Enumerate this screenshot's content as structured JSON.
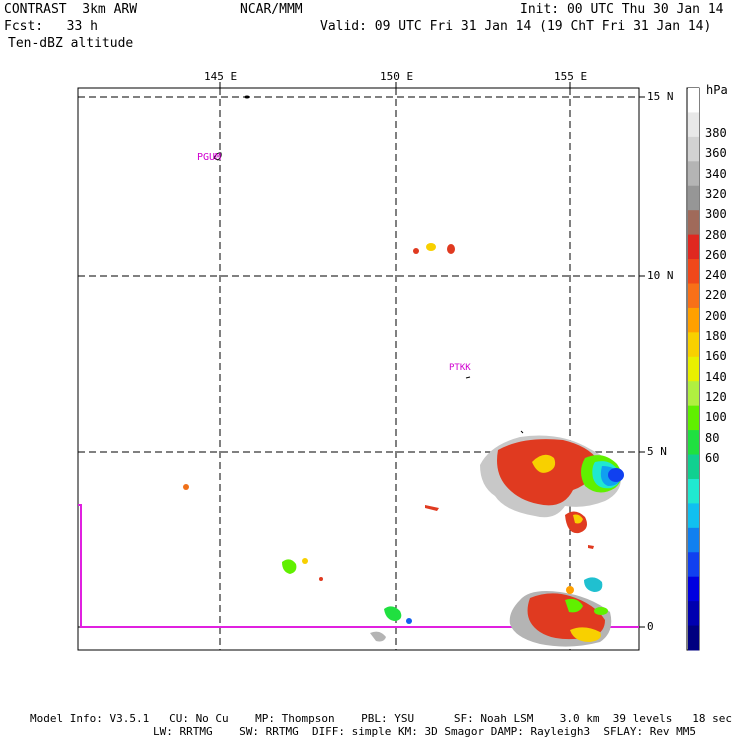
{
  "header": {
    "model": "CONTRAST  3km ARW",
    "center": "NCAR/MMM",
    "init": "Init: 00 UTC Thu 30 Jan 14",
    "fcst": "Fcst:   33 h",
    "valid": "Valid: 09 UTC Fri 31 Jan 14 (19 ChT Fri 31 Jan 14)",
    "field": "Ten-dBZ altitude"
  },
  "map": {
    "lon_labels": [
      "145 E",
      "150 E",
      "155 E"
    ],
    "lat_labels": [
      "15 N",
      "10 N",
      "5 N",
      "0"
    ],
    "station_labels": [
      "PGUM",
      "PTKK"
    ]
  },
  "colorbar": {
    "unit": "hPa",
    "levels": [
      "380",
      "360",
      "340",
      "320",
      "300",
      "280",
      "260",
      "240",
      "220",
      "200",
      "180",
      "160",
      "140",
      "120",
      "100",
      "80",
      "60"
    ],
    "colors": [
      "#ffffff",
      "#e8e8e8",
      "#d2d2d2",
      "#b4b4b4",
      "#969696",
      "#a06a5a",
      "#e02820",
      "#f0481a",
      "#f87018",
      "#ffa000",
      "#f8d000",
      "#e8f000",
      "#b0f040",
      "#60f000",
      "#20e040",
      "#10d090",
      "#20e8d0",
      "#10c0f0",
      "#1080f0",
      "#1040f0",
      "#0000e0",
      "#0000b0",
      "#000080"
    ]
  },
  "footer": {
    "line1": "Model Info: V3.5.1   CU: No Cu    MP: Thompson    PBL: YSU      SF: Noah LSM    3.0 km  39 levels   18 sec",
    "line2": "LW: RRTMG    SW: RRTMG  DIFF: simple KM: 3D Smagor DAMP: Rayleigh3  SFLAY: Rev MM5"
  }
}
